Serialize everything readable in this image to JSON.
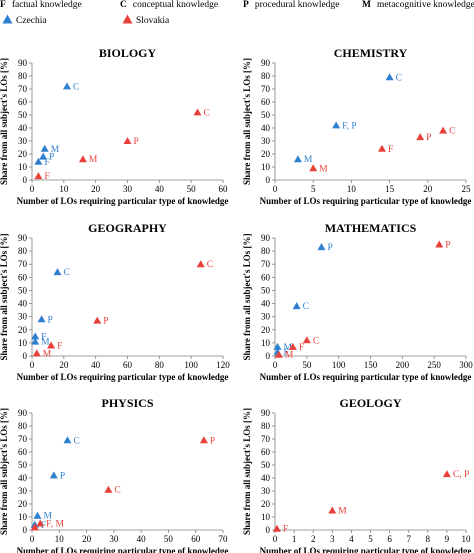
{
  "legend": {
    "knowledge_types": [
      {
        "code": "F",
        "label": "factual knowledge"
      },
      {
        "code": "C",
        "label": "conceptual knowledge"
      },
      {
        "code": "P",
        "label": "procedural knowledge"
      },
      {
        "code": "M",
        "label": "metacognitive knowledge"
      }
    ],
    "countries": [
      {
        "name": "Czechia",
        "color": "#2f7fd1",
        "marker": "triangle"
      },
      {
        "name": "Slovakia",
        "color": "#e8403b",
        "marker": "triangle"
      }
    ]
  },
  "chart_data": [
    {
      "type": "scatter",
      "title": "BIOLOGY",
      "xlabel": "Number of LOs requiring particular type of knowledge",
      "ylabel": "Share from all subject's LOs [%]",
      "xlim": [
        0,
        60
      ],
      "ylim": [
        0,
        90
      ],
      "xticks": [
        0,
        10,
        20,
        30,
        40,
        50,
        60
      ],
      "yticks": [
        0,
        10,
        20,
        30,
        40,
        50,
        60,
        70,
        80,
        90
      ],
      "series": [
        {
          "name": "Czechia",
          "points": [
            {
              "label": "C",
              "x": 11,
              "y": 72
            },
            {
              "label": "M",
              "x": 4,
              "y": 24
            },
            {
              "label": "P",
              "x": 3.5,
              "y": 18
            },
            {
              "label": "F",
              "x": 2,
              "y": 14
            }
          ]
        },
        {
          "name": "Slovakia",
          "points": [
            {
              "label": "C",
              "x": 52,
              "y": 52
            },
            {
              "label": "P",
              "x": 30,
              "y": 30
            },
            {
              "label": "M",
              "x": 16,
              "y": 16
            },
            {
              "label": "F",
              "x": 2,
              "y": 3
            }
          ]
        }
      ]
    },
    {
      "type": "scatter",
      "title": "CHEMISTRY",
      "xlabel": "Number of LOs requiring particular type of knowledge",
      "ylabel": "Share from all subject's LOs [%]",
      "xlim": [
        0,
        25
      ],
      "ylim": [
        0,
        90
      ],
      "xticks": [
        0,
        5,
        10,
        15,
        20,
        25
      ],
      "yticks": [
        0,
        10,
        20,
        30,
        40,
        50,
        60,
        70,
        80,
        90
      ],
      "series": [
        {
          "name": "Czechia",
          "points": [
            {
              "label": "C",
              "x": 15,
              "y": 79
            },
            {
              "label": "F, P",
              "x": 8,
              "y": 42
            },
            {
              "label": "M",
              "x": 3,
              "y": 16
            }
          ]
        },
        {
          "name": "Slovakia",
          "points": [
            {
              "label": "C",
              "x": 22,
              "y": 38
            },
            {
              "label": "P",
              "x": 19,
              "y": 33
            },
            {
              "label": "F",
              "x": 14,
              "y": 24
            },
            {
              "label": "M",
              "x": 5,
              "y": 9
            }
          ]
        }
      ]
    },
    {
      "type": "scatter",
      "title": "GEOGRAPHY",
      "xlabel": "Number of LOs requiring particular type of knowledge",
      "ylabel": "Share from all subject's LOs [%]",
      "xlim": [
        0,
        120
      ],
      "ylim": [
        0,
        90
      ],
      "xticks": [
        0,
        20,
        40,
        60,
        80,
        100,
        120
      ],
      "yticks": [
        0,
        10,
        20,
        30,
        40,
        50,
        60,
        70,
        80,
        90
      ],
      "series": [
        {
          "name": "Czechia",
          "points": [
            {
              "label": "C",
              "x": 16,
              "y": 64
            },
            {
              "label": "P",
              "x": 6,
              "y": 28
            },
            {
              "label": "F",
              "x": 2,
              "y": 15
            },
            {
              "label": "M",
              "x": 2,
              "y": 11
            }
          ]
        },
        {
          "name": "Slovakia",
          "points": [
            {
              "label": "C",
              "x": 106,
              "y": 70
            },
            {
              "label": "P",
              "x": 41,
              "y": 27
            },
            {
              "label": "F",
              "x": 12,
              "y": 8
            },
            {
              "label": "M",
              "x": 3,
              "y": 2
            }
          ]
        }
      ]
    },
    {
      "type": "scatter",
      "title": "MATHEMATICS",
      "xlabel": "Number of LOs requiring particular type of knowledge",
      "ylabel": "Share from all subject's LOs [%]",
      "xlim": [
        0,
        300
      ],
      "ylim": [
        0,
        90
      ],
      "xticks": [
        0,
        50,
        100,
        150,
        200,
        250,
        300
      ],
      "yticks": [
        0,
        10,
        20,
        30,
        40,
        50,
        60,
        70,
        80,
        90
      ],
      "series": [
        {
          "name": "Czechia",
          "points": [
            {
              "label": "P",
              "x": 73,
              "y": 83
            },
            {
              "label": "C",
              "x": 34,
              "y": 38
            },
            {
              "label": "M",
              "x": 4,
              "y": 7
            },
            {
              "label": "F",
              "x": 4,
              "y": 3
            }
          ]
        },
        {
          "name": "Slovakia",
          "points": [
            {
              "label": "P",
              "x": 258,
              "y": 85
            },
            {
              "label": "C",
              "x": 50,
              "y": 12
            },
            {
              "label": "F",
              "x": 28,
              "y": 7
            },
            {
              "label": "M",
              "x": 6,
              "y": 1
            }
          ]
        }
      ]
    },
    {
      "type": "scatter",
      "title": "PHYSICS",
      "xlabel": "Number of LOs requiring particular type of knowledge",
      "ylabel": "Share from all subject's LOs [%]",
      "xlim": [
        0,
        70
      ],
      "ylim": [
        0,
        90
      ],
      "xticks": [
        0,
        10,
        20,
        30,
        40,
        50,
        60,
        70
      ],
      "yticks": [
        0,
        10,
        20,
        30,
        40,
        50,
        60,
        70,
        80,
        90
      ],
      "series": [
        {
          "name": "Czechia",
          "points": [
            {
              "label": "C",
              "x": 13,
              "y": 69
            },
            {
              "label": "P",
              "x": 8,
              "y": 42
            },
            {
              "label": "M",
              "x": 2,
              "y": 11
            },
            {
              "label": "F",
              "x": 1,
              "y": 4
            }
          ]
        },
        {
          "name": "Slovakia",
          "points": [
            {
              "label": "P",
              "x": 63,
              "y": 69
            },
            {
              "label": "C",
              "x": 28,
              "y": 31
            },
            {
              "label": "F, M",
              "x": 3,
              "y": 5
            },
            {
              "label": "",
              "x": 1,
              "y": 2
            }
          ]
        }
      ]
    },
    {
      "type": "scatter",
      "title": "GEOLOGY",
      "xlabel": "Number of LOs requiring particular type of knowledge",
      "ylabel": "Share from all subject's LOs [%]",
      "xlim": [
        0,
        10
      ],
      "ylim": [
        0,
        90
      ],
      "xticks": [
        0,
        1,
        2,
        3,
        4,
        5,
        6,
        7,
        8,
        9,
        10
      ],
      "yticks": [
        0,
        10,
        20,
        30,
        40,
        50,
        60,
        70,
        80,
        90
      ],
      "series": [
        {
          "name": "Slovakia",
          "points": [
            {
              "label": "C, P",
              "x": 9,
              "y": 43
            },
            {
              "label": "M",
              "x": 3,
              "y": 15
            },
            {
              "label": "F",
              "x": 0.1,
              "y": 1
            }
          ]
        }
      ]
    }
  ]
}
